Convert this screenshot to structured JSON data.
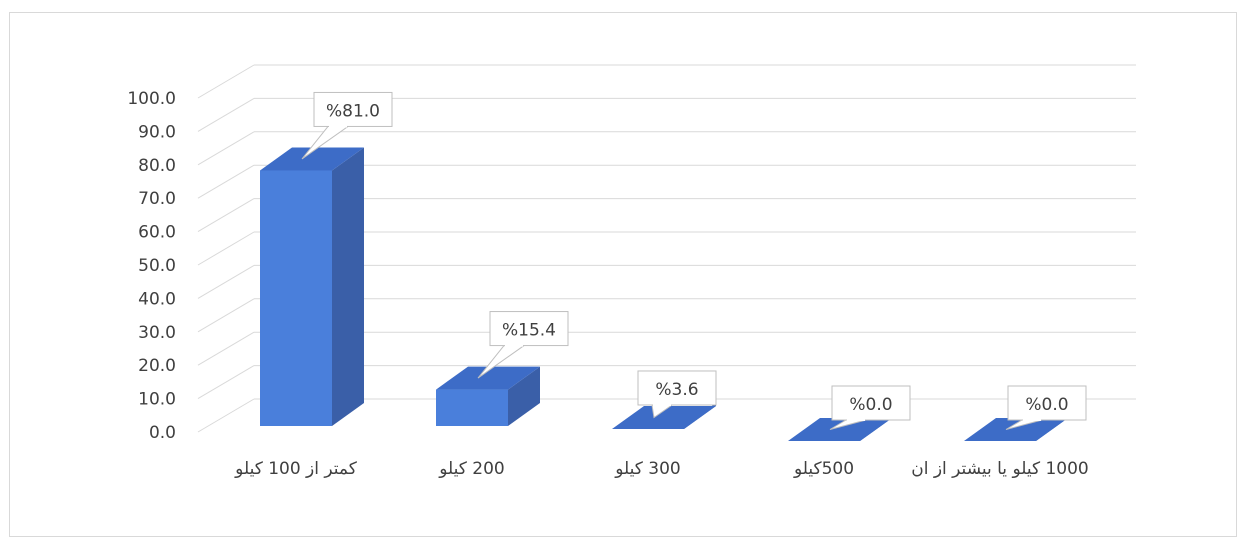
{
  "chart_data": {
    "type": "bar",
    "title": "",
    "xlabel": "",
    "ylabel": "",
    "categories": [
      "کمتر از 100 کیلو",
      "200 کیلو",
      "300 کیلو",
      "500کیلو",
      "1000 کیلو یا بیشتر از ان"
    ],
    "values": [
      81.0,
      15.4,
      3.6,
      0.0,
      0.0
    ],
    "data_labels": [
      "%81.0",
      "%15.4",
      "%3.6",
      "%0.0",
      "%0.0"
    ],
    "ylim": [
      0,
      100
    ],
    "yticks": [
      "0.0",
      "10.0",
      "20.0",
      "30.0",
      "40.0",
      "50.0",
      "60.0",
      "70.0",
      "80.0",
      "90.0",
      "100.0"
    ],
    "grid": true,
    "legend": "none",
    "style": "3d-column",
    "colors": {
      "front": "#4a7fdb",
      "side": "#3a5fa8",
      "top": "#3d6cc7",
      "grid": "#d9d9d9",
      "text": "#404040"
    }
  }
}
